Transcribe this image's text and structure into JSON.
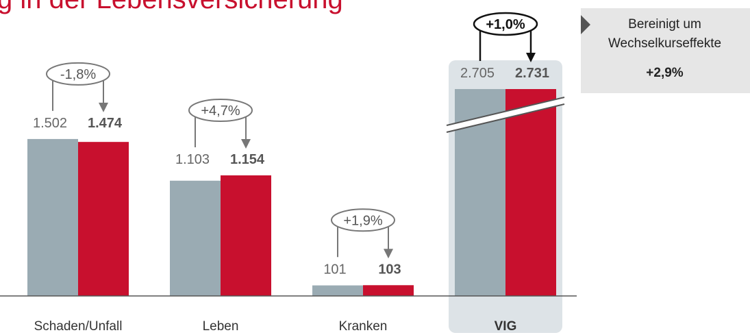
{
  "chart_data": {
    "type": "bar",
    "title": "g in der Lebensversicherung",
    "categories": [
      "Schaden/Unfall",
      "Leben",
      "Kranken",
      "VIG"
    ],
    "series": [
      {
        "color": "#9aabb3",
        "values": [
          1502,
          1103,
          101,
          2705
        ],
        "value_labels": [
          "1.502",
          "1.103",
          "101",
          "2.705"
        ]
      },
      {
        "color": "#c8102e",
        "values": [
          1474,
          1154,
          103,
          2731
        ],
        "value_labels": [
          "1.474",
          "1.154",
          "103",
          "2.731"
        ]
      }
    ],
    "changes": [
      "-1,8%",
      "+4,7%",
      "+1,9%",
      "+1,0%"
    ],
    "highlight": "VIG",
    "ylim": [
      0,
      1980
    ],
    "note": {
      "text": "Bereinigt um Wechselkurseffekte",
      "value": "+2,9%"
    }
  }
}
